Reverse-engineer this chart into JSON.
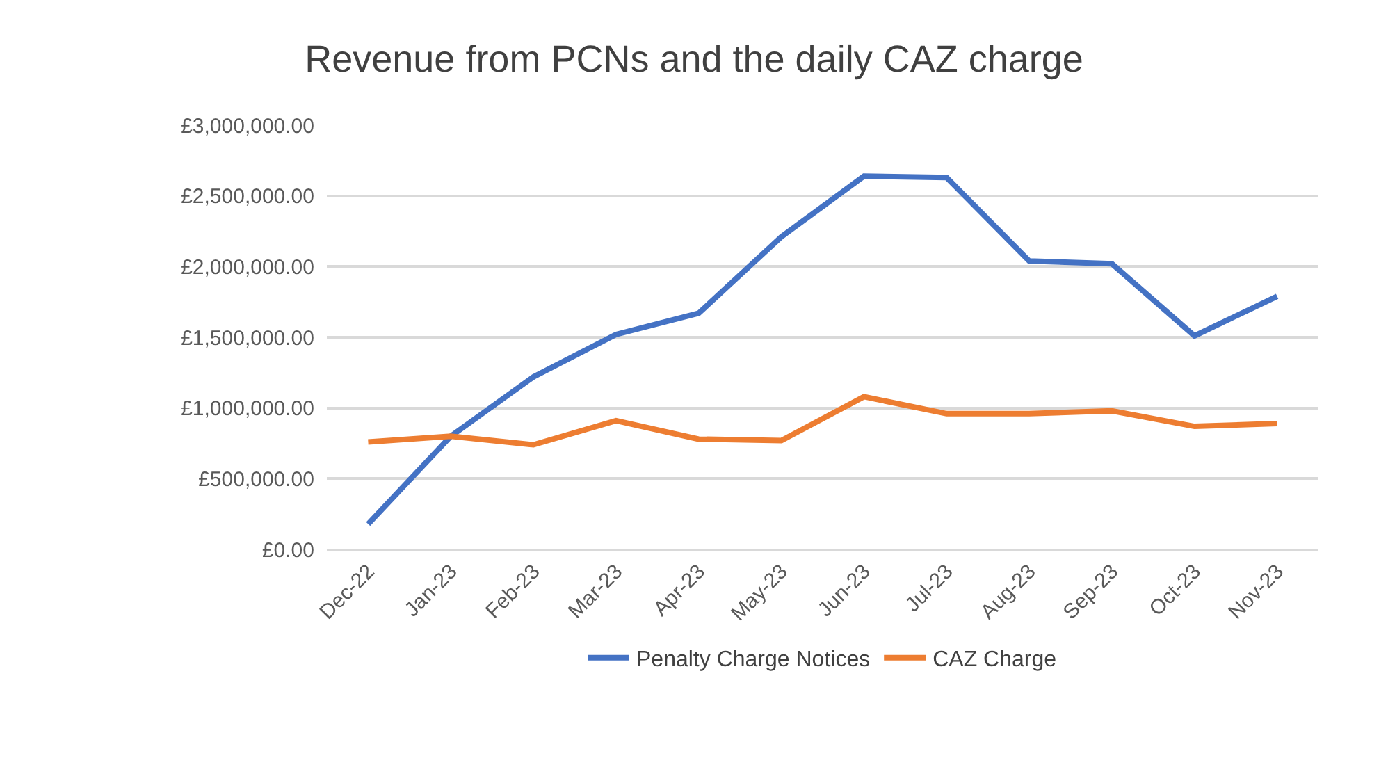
{
  "chart_data": {
    "type": "line",
    "title": "Revenue from PCNs and the daily CAZ charge",
    "categories": [
      "Dec-22",
      "Jan-23",
      "Feb-23",
      "Mar-23",
      "Apr-23",
      "May-23",
      "Jun-23",
      "Jul-23",
      "Aug-23",
      "Sep-23",
      "Oct-23",
      "Nov-23"
    ],
    "series": [
      {
        "name": "Penalty Charge Notices",
        "color": "#4472c4",
        "values": [
          180000,
          800000,
          1220000,
          1520000,
          1670000,
          2210000,
          2640000,
          2630000,
          2040000,
          2020000,
          1510000,
          1790000
        ]
      },
      {
        "name": "CAZ Charge",
        "color": "#ed7d31",
        "values": [
          760000,
          800000,
          740000,
          910000,
          780000,
          770000,
          1080000,
          960000,
          960000,
          980000,
          870000,
          890000
        ]
      }
    ],
    "ylim": [
      0,
      3000000
    ],
    "yticks": [
      {
        "value": 0,
        "label": "£0.00"
      },
      {
        "value": 500000,
        "label": "£500,000.00"
      },
      {
        "value": 1000000,
        "label": "£1,000,000.00"
      },
      {
        "value": 1500000,
        "label": "£1,500,000.00"
      },
      {
        "value": 2000000,
        "label": "£2,000,000.00"
      },
      {
        "value": 2500000,
        "label": "£2,500,000.00"
      },
      {
        "value": 3000000,
        "label": "£3,000,000.00"
      }
    ],
    "grid": "y",
    "legend": "bottom",
    "marker": "none",
    "line_style": "solid"
  }
}
